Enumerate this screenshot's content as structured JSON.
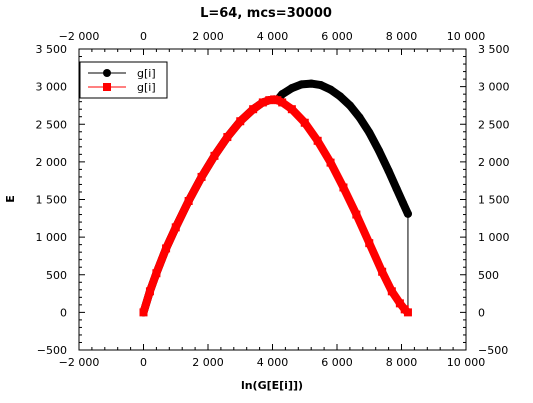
{
  "chart_data": {
    "type": "scatter",
    "title": "L=64, mcs=30000",
    "xlabel": "ln(G[E[i]])",
    "ylabel": "E",
    "xlim": [
      -2000,
      10000
    ],
    "ylim": [
      -500,
      3500
    ],
    "x_ticks": [
      -2000,
      0,
      2000,
      4000,
      6000,
      8000,
      10000
    ],
    "x_tick_labels": [
      "−2 000",
      "0",
      "2 000",
      "4 000",
      "6 000",
      "8 000",
      "10 000"
    ],
    "y_ticks": [
      -500,
      0,
      500,
      1000,
      1500,
      2000,
      2500,
      3000,
      3500
    ],
    "y_tick_labels": [
      "−500",
      "0",
      "500",
      "1 000",
      "1 500",
      "2 000",
      "2 500",
      "3 000",
      "3 500"
    ],
    "grid": false,
    "legend_position": "top-left",
    "series": [
      {
        "name": "g[i]",
        "color": "#000000",
        "marker": "circle",
        "x": [
          0,
          200,
          400,
          700,
          1000,
          1400,
          1800,
          2200,
          2600,
          3000,
          3400,
          3700,
          3900,
          4050,
          4150,
          4300,
          4600,
          4900,
          5200,
          5500,
          5800,
          6100,
          6400,
          6700,
          7000,
          7300,
          7600,
          7850,
          8050,
          8200
        ],
        "y": [
          0,
          280,
          520,
          850,
          1130,
          1480,
          1800,
          2080,
          2330,
          2540,
          2700,
          2790,
          2820,
          2830,
          2820,
          2900,
          2980,
          3030,
          3040,
          3020,
          2960,
          2870,
          2750,
          2590,
          2390,
          2150,
          1880,
          1640,
          1450,
          1310
        ]
      },
      {
        "name": "g[i]",
        "color": "#ff0000",
        "marker": "square",
        "x": [
          0,
          200,
          400,
          700,
          1000,
          1400,
          1800,
          2200,
          2600,
          3000,
          3400,
          3700,
          3900,
          4050,
          4150,
          4300,
          4600,
          5000,
          5400,
          5800,
          6200,
          6600,
          7000,
          7400,
          7700,
          7950,
          8100,
          8200
        ],
        "y": [
          0,
          280,
          520,
          850,
          1130,
          1480,
          1800,
          2080,
          2330,
          2540,
          2700,
          2790,
          2820,
          2830,
          2820,
          2790,
          2700,
          2520,
          2280,
          1990,
          1660,
          1300,
          920,
          540,
          280,
          120,
          40,
          0
        ]
      }
    ]
  }
}
